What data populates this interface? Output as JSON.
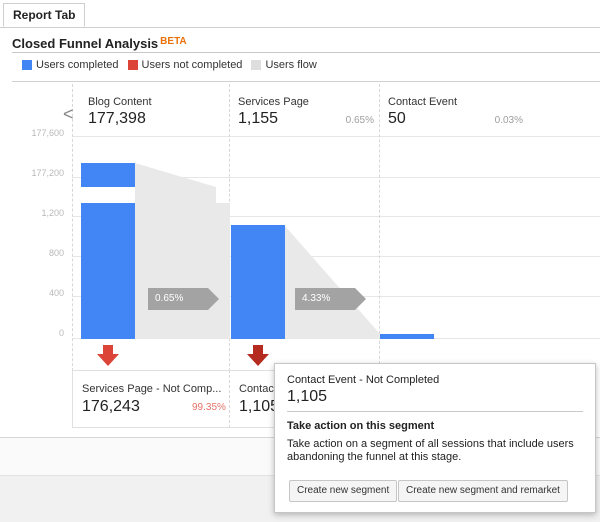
{
  "tab": {
    "label": "Report Tab"
  },
  "title": {
    "text": "Closed Funnel Analysis",
    "badge": "BETA"
  },
  "legend": [
    {
      "label": "Users completed",
      "color": "#4285f4"
    },
    {
      "label": "Users not completed",
      "color": "#db4437"
    },
    {
      "label": "Users flow",
      "color": "#dedede"
    }
  ],
  "yaxis": {
    "labels": [
      "177,600",
      "177,200",
      "1,200",
      "800",
      "400",
      "0"
    ]
  },
  "steps": [
    {
      "name": "Blog Content",
      "value": "177,398",
      "pct": ""
    },
    {
      "name": "Services Page",
      "value": "1,155",
      "pct": "0.65%"
    },
    {
      "name": "Contact Event",
      "value": "50",
      "pct": "0.03%"
    }
  ],
  "flows": [
    {
      "label": "0.65%"
    },
    {
      "label": "4.33%"
    }
  ],
  "dropoffs": [
    {
      "name": "Services Page - Not Comp...",
      "value": "176,243",
      "pct": "99.35%"
    },
    {
      "name": "Contact",
      "value": "1,105"
    }
  ],
  "popup": {
    "title": "Contact Event - Not Completed",
    "value": "1,105",
    "heading": "Take action on this segment",
    "description": "Take action on a segment of all sessions that include users abandoning the funnel at this stage.",
    "btn_create": "Create new segment",
    "btn_remarket": "Create new segment and remarket"
  },
  "chart_data": {
    "type": "bar",
    "title": "Closed Funnel Analysis",
    "categories": [
      "Blog Content",
      "Services Page",
      "Contact Event"
    ],
    "series": [
      {
        "name": "Users completed",
        "values": [
          177398,
          1155,
          50
        ]
      },
      {
        "name": "Users not completed",
        "values": [
          176243,
          1105,
          0
        ]
      }
    ],
    "ylim": [
      0,
      177600
    ],
    "axis_break": "between 1,200 and 177,200"
  }
}
